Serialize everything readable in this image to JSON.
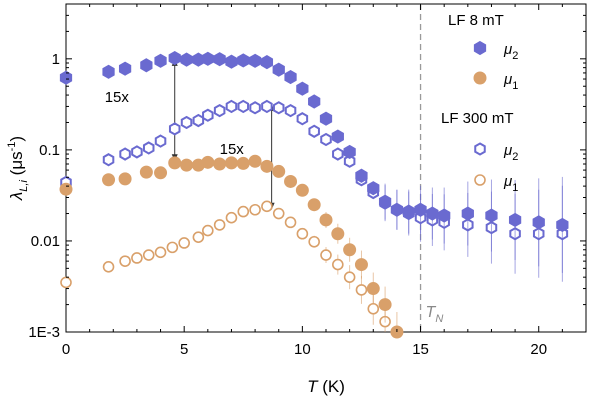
{
  "chart_data": {
    "type": "scatter",
    "xlabel_var": "T",
    "xlabel_unit": " (K)",
    "ylabel_var": "λ",
    "ylabel_sub": "L,i",
    "ylabel_unit": " (μs",
    "ylabel_exp": "-1",
    "ylabel_close": ")",
    "xlim": [
      0,
      22
    ],
    "ylim": [
      0.001,
      4
    ],
    "y_scale": "log",
    "x_ticks": [
      0,
      5,
      10,
      15,
      20
    ],
    "x_tick_labels": [
      "0",
      "5",
      "10",
      "15",
      "20"
    ],
    "y_ticks": [
      1,
      0.1,
      0.01,
      0.001
    ],
    "y_tick_labels": [
      "1",
      "0.1",
      "0.01",
      "1E-3"
    ],
    "legend": {
      "group1_title": "LF 8 mT",
      "group2_title": "LF 300 mT",
      "placement": "top-right"
    },
    "annotations": [
      {
        "text": "15x",
        "x": 4.6,
        "y_top": 1.0,
        "y_bottom": 0.075
      },
      {
        "text": "15x",
        "x": 8.7,
        "y_top": 0.32,
        "y_bottom": 0.022
      }
    ],
    "vline": {
      "x": 15,
      "label": "T",
      "label_sub": "N",
      "color": "#9a9a9a"
    },
    "series": [
      {
        "name": "μ",
        "name_sub": "2",
        "group": "LF 8 mT",
        "marker": "hexagon-filled",
        "color": "#6a6ad0",
        "x": [
          0,
          1.8,
          2.5,
          3.4,
          4,
          4.6,
          5.1,
          5.6,
          6,
          6.5,
          7,
          7.5,
          8,
          8.5,
          9,
          9.5,
          10,
          10.5,
          11,
          11.5,
          12,
          12.5,
          13,
          13.5,
          14,
          14.5,
          15,
          15.5,
          16,
          17,
          18,
          19,
          20,
          21
        ],
        "y": [
          0.62,
          0.72,
          0.78,
          0.85,
          0.95,
          1.02,
          0.98,
          0.98,
          1.0,
          0.99,
          0.93,
          0.96,
          0.95,
          0.92,
          0.76,
          0.63,
          0.47,
          0.34,
          0.22,
          0.14,
          0.095,
          0.052,
          0.038,
          0.027,
          0.022,
          0.021,
          0.022,
          0.02,
          0.019,
          0.02,
          0.019,
          0.017,
          0.016,
          0.015
        ]
      },
      {
        "name": "μ",
        "name_sub": "1",
        "group": "LF 8 mT",
        "marker": "circle-filled",
        "color": "#d9a06a",
        "x": [
          0,
          1.8,
          2.5,
          3.4,
          4,
          4.6,
          5.1,
          5.6,
          6,
          6.5,
          7,
          7.5,
          8,
          8.5,
          9,
          9.5,
          10,
          10.5,
          11,
          11.5,
          12,
          12.5,
          13,
          13.5,
          14
        ],
        "y": [
          0.037,
          0.047,
          0.048,
          0.057,
          0.056,
          0.072,
          0.068,
          0.068,
          0.073,
          0.07,
          0.072,
          0.071,
          0.075,
          0.066,
          0.058,
          0.045,
          0.036,
          0.025,
          0.017,
          0.012,
          0.008,
          0.0055,
          0.003,
          0.002,
          0.001
        ]
      },
      {
        "name": "μ",
        "name_sub": "2",
        "group": "LF 300 mT",
        "marker": "hexagon-open",
        "color": "#6a6ad0",
        "x": [
          0,
          1.8,
          2.5,
          3,
          3.5,
          4,
          4.6,
          5.1,
          5.6,
          6,
          6.5,
          7,
          7.5,
          8,
          8.5,
          9,
          9.5,
          10,
          10.5,
          11,
          11.5,
          12,
          12.5,
          13,
          13.5,
          14,
          14.5,
          15,
          15.5,
          16,
          17,
          18,
          19,
          20,
          21
        ],
        "y": [
          0.044,
          0.078,
          0.09,
          0.095,
          0.105,
          0.125,
          0.17,
          0.2,
          0.21,
          0.24,
          0.27,
          0.3,
          0.3,
          0.29,
          0.3,
          0.29,
          0.27,
          0.22,
          0.16,
          0.13,
          0.09,
          0.075,
          0.047,
          0.034,
          0.026,
          0.022,
          0.02,
          0.018,
          0.017,
          0.016,
          0.015,
          0.014,
          0.012,
          0.012,
          0.012
        ]
      },
      {
        "name": "μ",
        "name_sub": "1",
        "group": "LF 300 mT",
        "marker": "circle-open",
        "color": "#d9a06a",
        "x": [
          0,
          1.8,
          2.5,
          3,
          3.5,
          4,
          4.5,
          5,
          5.6,
          6,
          6.5,
          7,
          7.5,
          8,
          8.5,
          9,
          9.5,
          10,
          10.5,
          11,
          11.5,
          12,
          12.5,
          13,
          13.5
        ],
        "y": [
          0.0035,
          0.0052,
          0.006,
          0.0065,
          0.007,
          0.0075,
          0.0085,
          0.0095,
          0.011,
          0.013,
          0.015,
          0.018,
          0.021,
          0.022,
          0.024,
          0.02,
          0.016,
          0.012,
          0.0098,
          0.007,
          0.0055,
          0.004,
          0.0029,
          0.0018,
          0.0013
        ]
      }
    ]
  }
}
